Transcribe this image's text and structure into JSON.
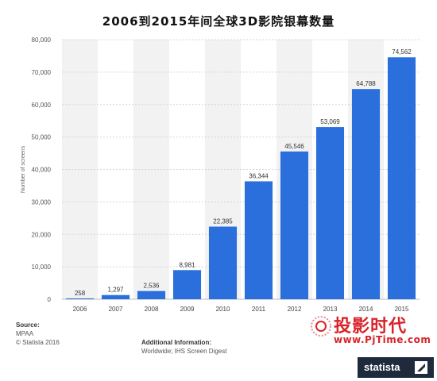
{
  "chart_data": {
    "type": "bar",
    "title": "2006到2015年间全球3D影院银幕数量",
    "xlabel": "",
    "ylabel": "Number of screens",
    "categories": [
      "2006",
      "2007",
      "2008",
      "2009",
      "2010",
      "2011",
      "2012",
      "2013",
      "2014",
      "2015"
    ],
    "values": [
      258,
      1297,
      2536,
      8981,
      22385,
      36344,
      45546,
      53069,
      64788,
      74562
    ],
    "value_labels": [
      "258",
      "1,297",
      "2,536",
      "8,981",
      "22,385",
      "36,344",
      "45,546",
      "53,069",
      "64,788",
      "74,562"
    ],
    "ylim": [
      0,
      80000
    ],
    "yticks": [
      0,
      10000,
      20000,
      30000,
      40000,
      50000,
      60000,
      70000,
      80000
    ],
    "ytick_labels": [
      "0",
      "10,000",
      "20,000",
      "30,000",
      "40,000",
      "50,000",
      "60,000",
      "70,000",
      "80,000"
    ],
    "bar_color": "#2a6fdb",
    "grid": true,
    "legend": "none"
  },
  "footer": {
    "source_heading": "Source:",
    "source_lines": [
      "MPAA",
      "© Statista 2016"
    ],
    "info_heading": "Additional Information:",
    "info_line": "Worldwide; IHS Screen Digest"
  },
  "watermark": {
    "name": "投影时代",
    "url": "www.PjTime.com"
  },
  "logo": {
    "text": "statista",
    "icon": "statista-logo-icon"
  }
}
